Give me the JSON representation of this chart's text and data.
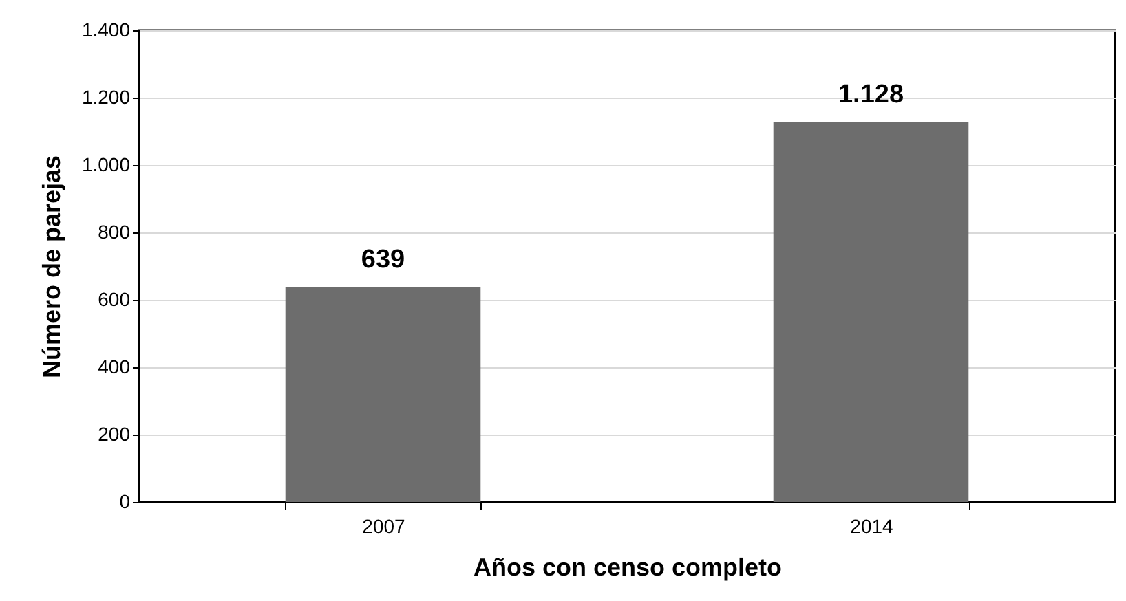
{
  "chart_data": {
    "type": "bar",
    "xlabel": "Años con censo completo",
    "ylabel": "Número de parejas",
    "categories": [
      "2007",
      "2014"
    ],
    "values": [
      639,
      1128
    ],
    "value_labels": [
      "639",
      "1.128"
    ],
    "color": "#6d6d6d",
    "ylim": [
      0,
      1400
    ],
    "yticks": [
      0,
      200,
      400,
      600,
      800,
      {
        "value": 1000,
        "label": "1.000"
      },
      {
        "value": 1200,
        "label": "1.200"
      },
      {
        "value": 1400,
        "label": "1.400"
      }
    ],
    "grid": "y"
  }
}
